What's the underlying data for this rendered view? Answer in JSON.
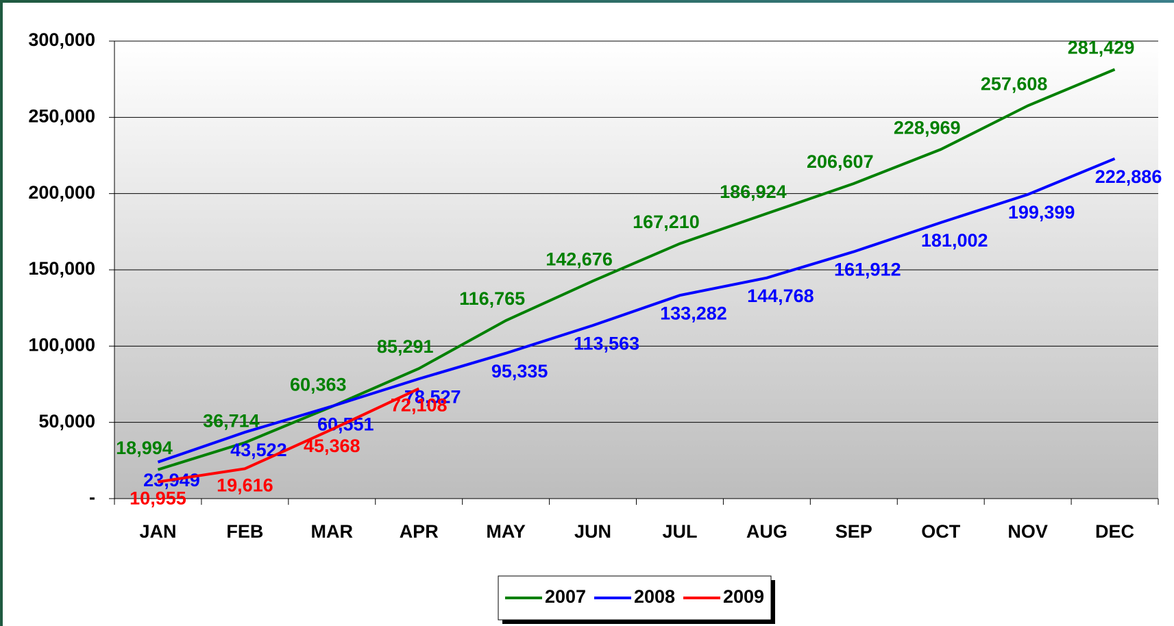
{
  "chart_data": {
    "type": "line",
    "categories": [
      "JAN",
      "FEB",
      "MAR",
      "APR",
      "MAY",
      "JUN",
      "JUL",
      "AUG",
      "SEP",
      "OCT",
      "NOV",
      "DEC"
    ],
    "series": [
      {
        "name": "2007",
        "color": "#008000",
        "values": [
          18994,
          36714,
          60363,
          85291,
          116765,
          142676,
          167210,
          186924,
          206607,
          228969,
          257608,
          281429
        ],
        "value_labels": [
          "18,994",
          "36,714",
          "60,363",
          "85,291",
          "116,765",
          "142,676",
          "167,210",
          "186,924",
          "206,607",
          "228,969",
          "257,608",
          "281,429"
        ]
      },
      {
        "name": "2008",
        "color": "#0000ff",
        "values": [
          23949,
          43522,
          60551,
          78527,
          95335,
          113563,
          133282,
          144768,
          161912,
          181002,
          199399,
          222886
        ],
        "value_labels": [
          "23,949",
          "43,522",
          "60,551",
          "78,527",
          "95,335",
          "113,563",
          "133,282",
          "144,768",
          "161,912",
          "181,002",
          "199,399",
          "222,886"
        ]
      },
      {
        "name": "2009",
        "color": "#ff0000",
        "values": [
          10955,
          19616,
          45368,
          72108,
          null,
          null,
          null,
          null,
          null,
          null,
          null,
          null
        ],
        "value_labels": [
          "10,955",
          "19,616",
          "45,368",
          "72,108",
          null,
          null,
          null,
          null,
          null,
          null,
          null,
          null
        ]
      }
    ],
    "ylim": [
      0,
      300000
    ],
    "yticks": [
      {
        "value": 0,
        "label": "-"
      },
      {
        "value": 50000,
        "label": "50,000"
      },
      {
        "value": 100000,
        "label": "100,000"
      },
      {
        "value": 150000,
        "label": "150,000"
      },
      {
        "value": 200000,
        "label": "200,000"
      },
      {
        "value": 250000,
        "label": "250,000"
      },
      {
        "value": 300000,
        "label": "300,000"
      }
    ],
    "grid": true,
    "legend": "bottom"
  }
}
